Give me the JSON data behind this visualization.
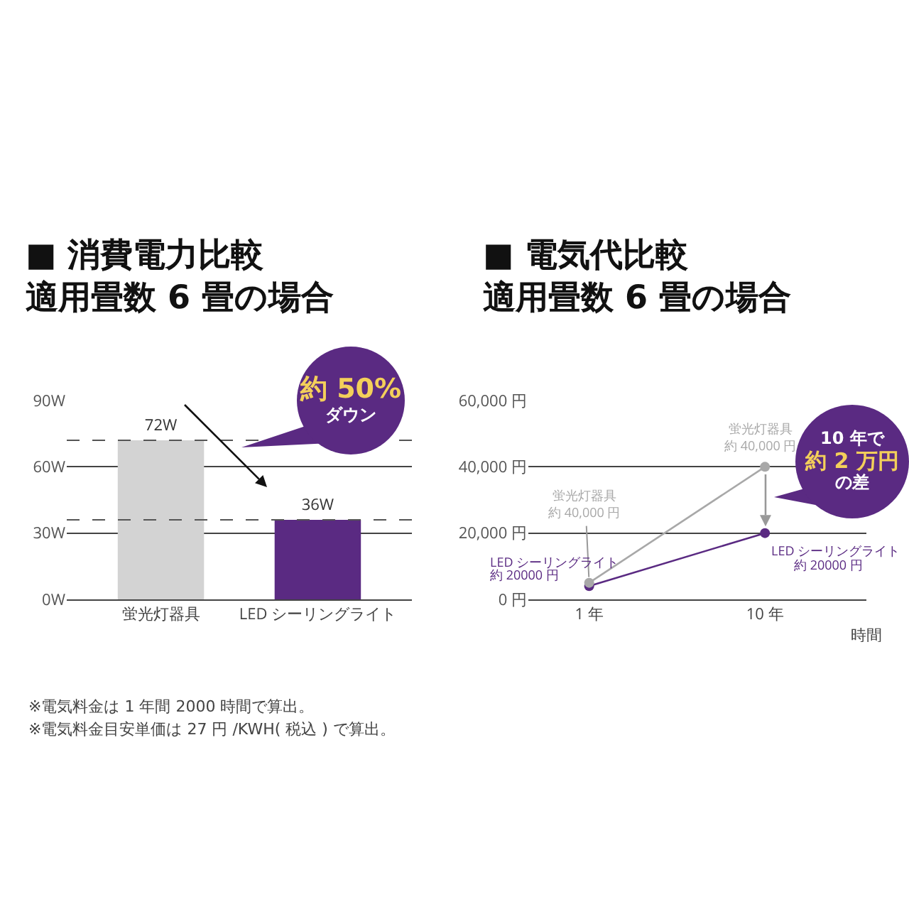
{
  "chart_data": [
    {
      "type": "bar",
      "title": "■ 消費電力比較",
      "subtitle": "適用畳数 6 畳の場合",
      "categories": [
        "蛍光灯器具",
        "LED シーリングライト"
      ],
      "values": [
        72,
        36
      ],
      "colors": [
        "#d3d3d3",
        "#5a2a82"
      ],
      "value_labels": [
        "72W",
        "36W"
      ],
      "ylim": [
        0,
        90
      ],
      "yticks": [
        {
          "value": 0,
          "label": "0W"
        },
        {
          "value": 30,
          "label": "30W"
        },
        {
          "value": 60,
          "label": "60W"
        },
        {
          "value": 90,
          "label": "90W"
        }
      ],
      "grid": "y",
      "ref_lines": [
        {
          "axis": "y",
          "value": 72,
          "line_style": "dashed"
        },
        {
          "axis": "y",
          "value": 36,
          "line_style": "dashed"
        }
      ],
      "annotations": [
        "約 50%",
        "ダウン",
        "※電気料金は 1 年間 2000 時間で算出。",
        "※電気料金目安単価は 27 円 /KWH( 税込 ) で算出。"
      ]
    },
    {
      "type": "line",
      "title": "■ 電気代比較",
      "subtitle": "適用畳数 6 畳の場合",
      "xlabel": "時間",
      "categories": [
        "1 年",
        "10 年"
      ],
      "series": [
        {
          "color": "#a8a8a8",
          "values": [
            5000,
            40000
          ]
        },
        {
          "color": "#5a2a82",
          "values": [
            4000,
            20000
          ]
        }
      ],
      "ylim": [
        0,
        60000
      ],
      "yticks": [
        {
          "value": 0,
          "label": "0 円"
        },
        {
          "value": 20000,
          "label": "20,000 円"
        },
        {
          "value": 40000,
          "label": "40,000 円"
        },
        {
          "value": 60000,
          "label": "60,000 円"
        }
      ],
      "grid": "y",
      "marker": "circle",
      "line_style": "solid",
      "annotations": [
        "10 年で",
        "約 2 万円",
        "の差",
        {
          "text": "蛍光灯器具",
          "x": "10 年",
          "y": 40000
        },
        {
          "text": "約 40,000 円",
          "x": "10 年",
          "y": 40000
        },
        {
          "text": "蛍光灯器具",
          "x": "1 年",
          "y": 5000
        },
        {
          "text": "約 40,000 円",
          "x": "1 年",
          "y": 5000
        },
        {
          "text": "LED シーリングライト",
          "x": "1 年",
          "y": 4000
        },
        {
          "text": "約 20000 円",
          "x": "1 年",
          "y": 4000
        },
        {
          "text": "LED シーリングライト",
          "x": "10 年",
          "y": 20000
        },
        {
          "text": "約 20000 円",
          "x": "10 年",
          "y": 20000
        }
      ]
    }
  ]
}
